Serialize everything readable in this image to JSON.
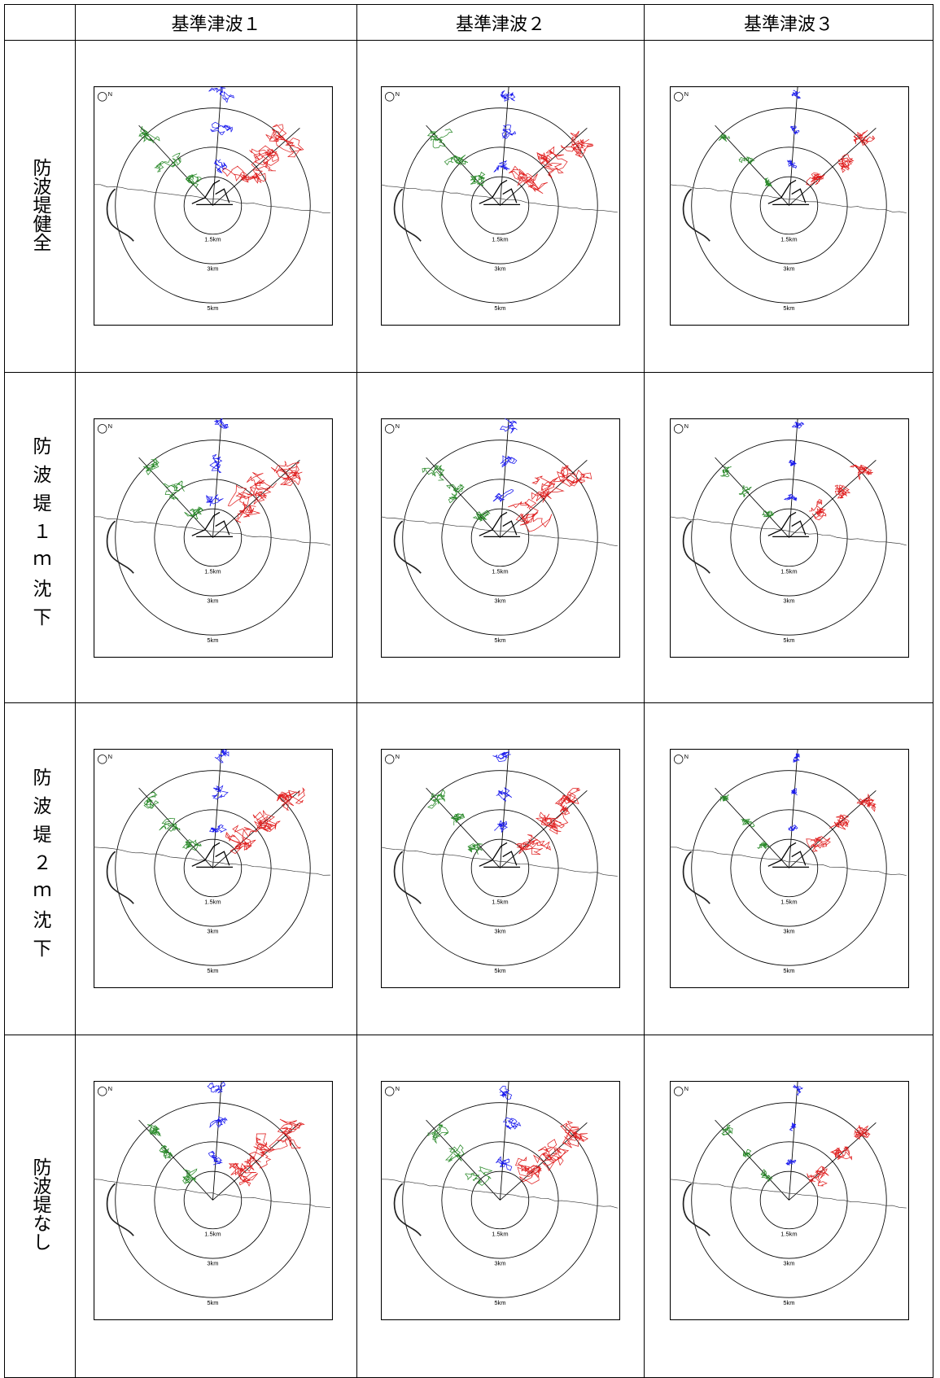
{
  "table": {
    "header": [
      "",
      "基準津波１",
      "基準津波２",
      "基準津波３"
    ],
    "rows": [
      "防波堤健全",
      "防波堤１ｍ沈下",
      "防波堤２ｍ沈下",
      "防波堤なし"
    ]
  },
  "map_labels": {
    "north": "N",
    "rings": [
      "1.5km",
      "3km",
      "5km"
    ]
  }
}
